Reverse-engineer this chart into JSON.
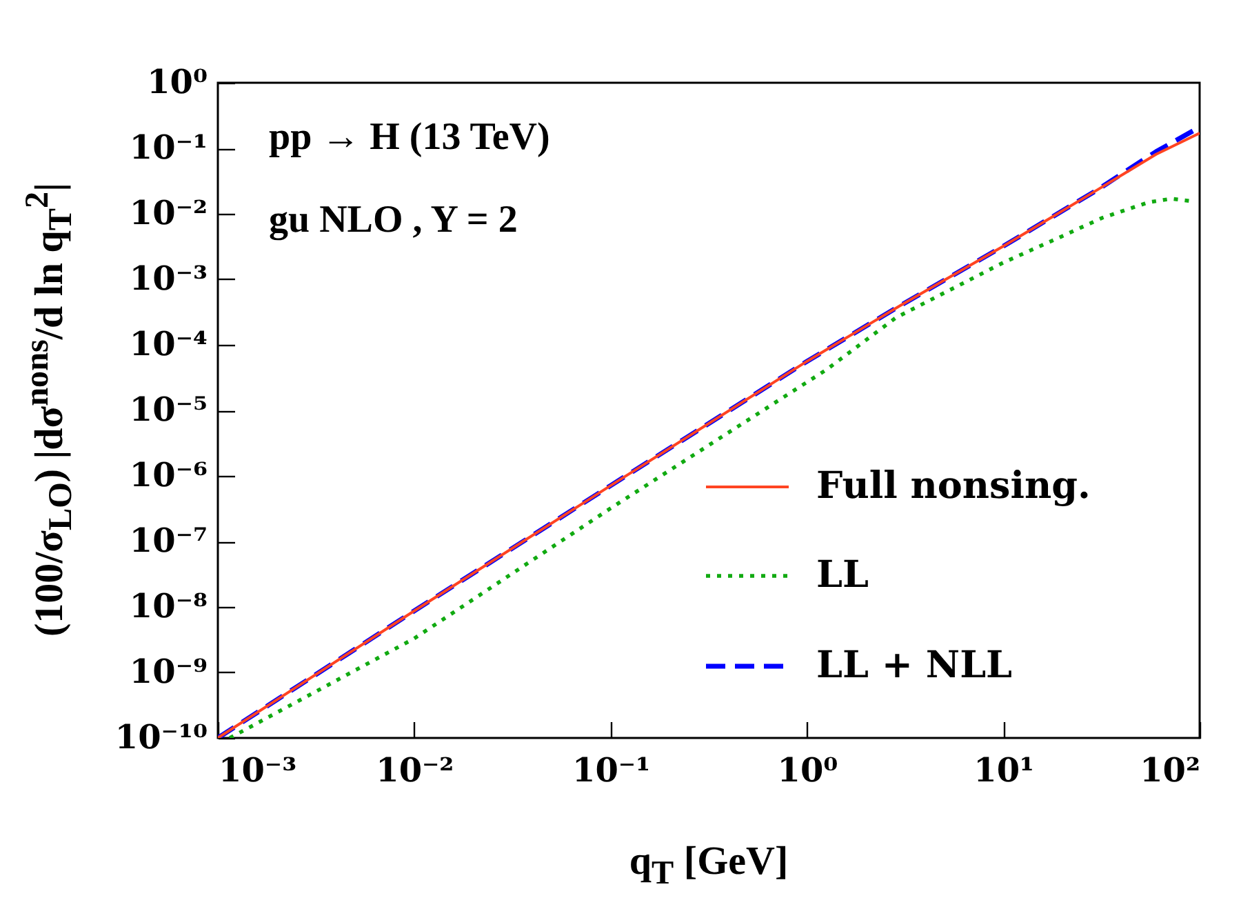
{
  "chart_data": {
    "type": "line",
    "xlabel": "q$_{T}$ [GeV]",
    "ylabel": "(100/σ$_{LO}$) |dσ$^{nons}$/d ln q$_{T}$$^{2}$|",
    "annotations": [
      "pp → H (13 TeV)",
      "gu NLO , Y = 2"
    ],
    "log": "xy",
    "grid": false,
    "legend": "right",
    "xlim": [
      0.001,
      100
    ],
    "ylim": [
      1e-10,
      1
    ],
    "xticks": [
      {
        "value": 0.001,
        "label": "10⁻³"
      },
      {
        "value": 0.01,
        "label": "10⁻²"
      },
      {
        "value": 0.1,
        "label": "10⁻¹"
      },
      {
        "value": 1,
        "label": "10⁰"
      },
      {
        "value": 10,
        "label": "10¹"
      },
      {
        "value": 100,
        "label": "10²"
      }
    ],
    "yticks": [
      {
        "value": 1e-10,
        "label": "10⁻¹⁰"
      },
      {
        "value": 1e-09,
        "label": "10⁻⁹"
      },
      {
        "value": 1e-08,
        "label": "10⁻⁸"
      },
      {
        "value": 1e-07,
        "label": "10⁻⁷"
      },
      {
        "value": 1e-06,
        "label": "10⁻⁶"
      },
      {
        "value": 1e-05,
        "label": "10⁻⁵"
      },
      {
        "value": 0.0001,
        "label": "10⁻⁴"
      },
      {
        "value": 0.001,
        "label": "10⁻³"
      },
      {
        "value": 0.01,
        "label": "10⁻²"
      },
      {
        "value": 0.1,
        "label": "10⁻¹"
      },
      {
        "value": 1,
        "label": "10⁰"
      }
    ],
    "series": [
      {
        "name": "Full nonsing.",
        "color": "#ff4422",
        "line_style": "solid",
        "x": [
          0.001,
          0.01,
          0.1,
          1,
          3,
          10,
          30,
          60,
          100
        ],
        "values": [
          1e-10,
          8.7e-09,
          7.1e-07,
          5.6e-05,
          0.0004,
          0.0032,
          0.023,
          0.081,
          0.17
        ]
      },
      {
        "name": "LL",
        "color": "#11aa11",
        "line_style": "dotted",
        "x": [
          0.00115,
          0.01,
          0.1,
          1.26,
          2.84,
          10,
          18.8,
          32,
          55,
          72,
          92
        ],
        "values": [
          1e-10,
          3.3e-09,
          3.2e-07,
          4.2e-05,
          0.00026,
          0.0018,
          0.0042,
          0.0087,
          0.015,
          0.017,
          0.0155
        ]
      },
      {
        "name": "LL + NLL",
        "color": "#0000ff",
        "line_style": "dashed",
        "x": [
          0.001,
          0.01,
          0.1,
          1,
          3,
          10,
          30,
          60,
          100
        ],
        "values": [
          1e-10,
          8.7e-09,
          7.1e-07,
          5.6e-05,
          0.0004,
          0.0032,
          0.023,
          0.089,
          0.21
        ]
      }
    ]
  }
}
